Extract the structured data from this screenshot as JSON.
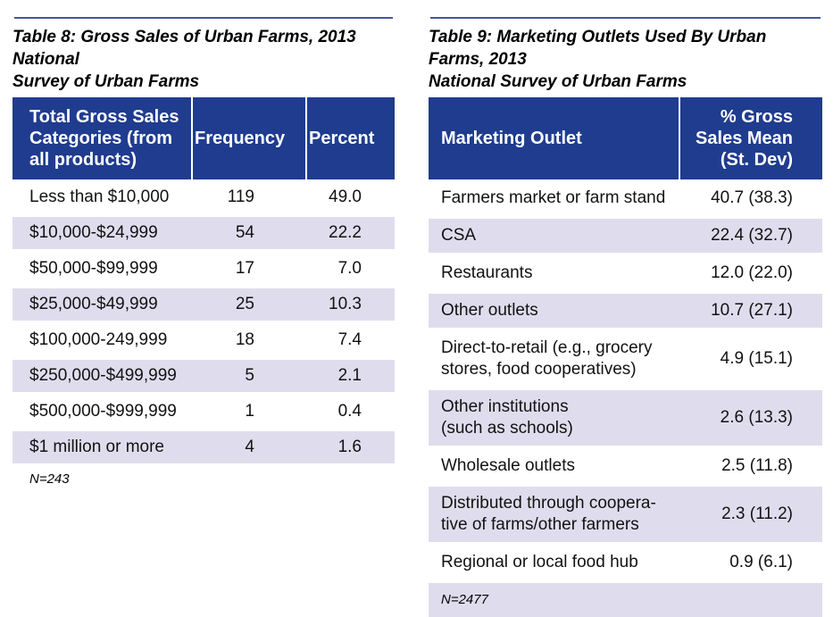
{
  "colors": {
    "header_bg": "#1f3c8f",
    "alt_row_bg": "#dfdded",
    "rule_line": "#47569e",
    "header_text": "#ffffff",
    "body_text": "#121212"
  },
  "table8": {
    "title": "Table 8: Gross Sales of Urban Farms, 2013 National\nSurvey of Urban Farms",
    "columns": [
      "Total Gross Sales\nCategories (from\nall products)",
      "Frequency",
      "Percent"
    ],
    "rows": [
      {
        "category": "Less than $10,000",
        "frequency": "119",
        "percent": "49.0"
      },
      {
        "category": "$10,000-$24,999",
        "frequency": "54",
        "percent": "22.2"
      },
      {
        "category": "$50,000-$99,999",
        "frequency": "17",
        "percent": "7.0"
      },
      {
        "category": "$25,000-$49,999",
        "frequency": "25",
        "percent": "10.3"
      },
      {
        "category": "$100,000-249,999",
        "frequency": "18",
        "percent": "7.4"
      },
      {
        "category": "$250,000-$499,999",
        "frequency": "5",
        "percent": "2.1"
      },
      {
        "category": "$500,000-$999,999",
        "frequency": "1",
        "percent": "0.4"
      },
      {
        "category": "$1 million or more",
        "frequency": "4",
        "percent": "1.6"
      }
    ],
    "footnote": "N=243"
  },
  "table9": {
    "title": "Table 9: Marketing Outlets Used By Urban Farms, 2013\nNational Survey of Urban Farms",
    "columns": [
      "Marketing Outlet",
      "% Gross\nSales Mean\n(St. Dev)"
    ],
    "rows": [
      {
        "outlet": "Farmers market or farm stand",
        "value": "40.7 (38.3)"
      },
      {
        "outlet": "CSA",
        "value": "22.4 (32.7)"
      },
      {
        "outlet": "Restaurants",
        "value": "12.0 (22.0)"
      },
      {
        "outlet": "Other outlets",
        "value": "10.7 (27.1)"
      },
      {
        "outlet": "Direct-to-retail (e.g., grocery\nstores, food cooperatives)",
        "value": "4.9 (15.1)"
      },
      {
        "outlet": "Other institutions\n(such as schools)",
        "value": "2.6 (13.3)"
      },
      {
        "outlet": "Wholesale outlets",
        "value": "2.5 (11.8)"
      },
      {
        "outlet": "Distributed through coopera-\ntive of farms/other farmers",
        "value": "2.3 (11.2)"
      },
      {
        "outlet": "Regional or local food hub",
        "value": "0.9 (6.1)"
      }
    ],
    "footnote": "N=2477"
  }
}
